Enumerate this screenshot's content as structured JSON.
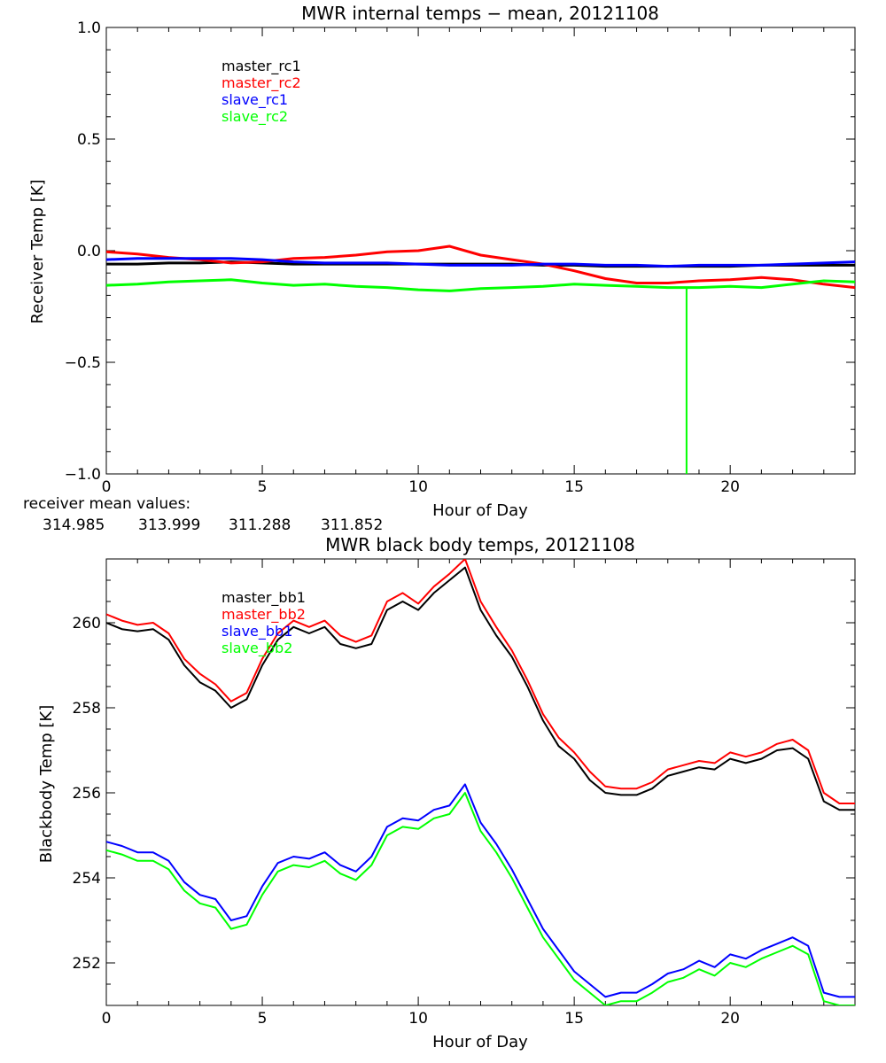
{
  "chart_data": [
    {
      "type": "line",
      "title": "MWR internal temps − mean, 20121108",
      "xlabel": "Hour of Day",
      "ylabel": "Receiver Temp [K]",
      "xlim": [
        0,
        24
      ],
      "ylim": [
        -1.0,
        1.0
      ],
      "xticks": [
        0,
        5,
        10,
        15,
        20
      ],
      "yticks": [
        -1.0,
        -0.5,
        0.0,
        0.5,
        1.0
      ],
      "ytick_labels": [
        "−1.0",
        "−0.5",
        "0.0",
        "0.5",
        "1.0"
      ],
      "legend_position": "top-left",
      "x": [
        0,
        1,
        2,
        3,
        4,
        5,
        6,
        7,
        8,
        9,
        10,
        11,
        12,
        13,
        14,
        15,
        16,
        17,
        18,
        19,
        20,
        21,
        22,
        23,
        24
      ],
      "series": [
        {
          "name": "master_rc1",
          "color": "#000000",
          "values": [
            -0.06,
            -0.06,
            -0.055,
            -0.055,
            -0.05,
            -0.055,
            -0.06,
            -0.06,
            -0.06,
            -0.06,
            -0.06,
            -0.06,
            -0.06,
            -0.06,
            -0.065,
            -0.065,
            -0.07,
            -0.07,
            -0.07,
            -0.07,
            -0.07,
            -0.065,
            -0.065,
            -0.065,
            -0.065
          ]
        },
        {
          "name": "master_rc2",
          "color": "#ff0000",
          "values": [
            -0.005,
            -0.015,
            -0.03,
            -0.04,
            -0.055,
            -0.05,
            -0.035,
            -0.03,
            -0.02,
            -0.005,
            0.0,
            0.02,
            -0.02,
            -0.04,
            -0.06,
            -0.09,
            -0.125,
            -0.145,
            -0.145,
            -0.135,
            -0.13,
            -0.12,
            -0.13,
            -0.15,
            -0.165
          ]
        },
        {
          "name": "slave_rc1",
          "color": "#0000ff",
          "values": [
            -0.04,
            -0.035,
            -0.035,
            -0.035,
            -0.035,
            -0.04,
            -0.05,
            -0.055,
            -0.055,
            -0.055,
            -0.06,
            -0.065,
            -0.065,
            -0.065,
            -0.06,
            -0.06,
            -0.065,
            -0.065,
            -0.07,
            -0.065,
            -0.065,
            -0.065,
            -0.06,
            -0.055,
            -0.05
          ]
        },
        {
          "name": "slave_rc2",
          "color": "#00ff00",
          "values": [
            -0.155,
            -0.15,
            -0.14,
            -0.135,
            -0.13,
            -0.145,
            -0.155,
            -0.15,
            -0.16,
            -0.165,
            -0.175,
            -0.18,
            -0.17,
            -0.165,
            -0.16,
            -0.15,
            -0.155,
            -0.16,
            -0.165,
            -0.165,
            -0.16,
            -0.165,
            -0.15,
            -0.135,
            -0.14
          ],
          "spike": {
            "x": 18.6,
            "to": -1.0
          }
        }
      ]
    },
    {
      "type": "line",
      "title": "MWR black body temps, 20121108",
      "xlabel": "Hour of Day",
      "ylabel": "Blackbody Temp [K]",
      "xlim": [
        0,
        24
      ],
      "ylim": [
        251.0,
        261.5
      ],
      "xticks": [
        0,
        5,
        10,
        15,
        20
      ],
      "yticks": [
        252,
        254,
        256,
        258,
        260
      ],
      "legend_position": "top-left",
      "x": [
        0,
        0.5,
        1,
        1.5,
        2,
        2.5,
        3,
        3.5,
        4,
        4.5,
        5,
        5.5,
        6,
        6.5,
        7,
        7.5,
        8,
        8.5,
        9,
        9.5,
        10,
        10.5,
        11,
        11.5,
        12,
        12.5,
        13,
        13.5,
        14,
        14.5,
        15,
        15.5,
        16,
        16.5,
        17,
        17.5,
        18,
        18.5,
        19,
        19.5,
        20,
        20.5,
        21,
        21.5,
        22,
        22.5,
        23,
        23.5,
        24
      ],
      "series": [
        {
          "name": "master_bb1",
          "color": "#000000",
          "values": [
            260.0,
            259.85,
            259.8,
            259.85,
            259.6,
            259.0,
            258.6,
            258.4,
            258.0,
            258.2,
            259.0,
            259.6,
            259.9,
            259.75,
            259.9,
            259.5,
            259.4,
            259.5,
            260.3,
            260.5,
            260.3,
            260.7,
            261.0,
            261.3,
            260.3,
            259.7,
            259.2,
            258.5,
            257.7,
            257.1,
            256.8,
            256.3,
            256.0,
            255.95,
            255.95,
            256.1,
            256.4,
            256.5,
            256.6,
            256.55,
            256.8,
            256.7,
            256.8,
            257.0,
            257.05,
            256.8,
            255.8,
            255.6,
            255.6
          ]
        },
        {
          "name": "master_bb2",
          "color": "#ff0000",
          "values": [
            260.2,
            260.05,
            259.95,
            260.0,
            259.75,
            259.15,
            258.8,
            258.55,
            258.15,
            258.35,
            259.15,
            259.75,
            260.05,
            259.9,
            260.05,
            259.7,
            259.55,
            259.7,
            260.5,
            260.7,
            260.45,
            260.85,
            261.15,
            261.5,
            260.5,
            259.9,
            259.35,
            258.65,
            257.85,
            257.3,
            256.95,
            256.5,
            256.15,
            256.1,
            256.1,
            256.25,
            256.55,
            256.65,
            256.75,
            256.7,
            256.95,
            256.85,
            256.95,
            257.15,
            257.25,
            257.0,
            256.0,
            255.75,
            255.75
          ]
        },
        {
          "name": "slave_bb1",
          "color": "#0000ff",
          "values": [
            254.85,
            254.75,
            254.6,
            254.6,
            254.4,
            253.9,
            253.6,
            253.5,
            253.0,
            253.1,
            253.8,
            254.35,
            254.5,
            254.45,
            254.6,
            254.3,
            254.15,
            254.5,
            255.2,
            255.4,
            255.35,
            255.6,
            255.7,
            256.2,
            255.3,
            254.8,
            254.2,
            253.5,
            252.8,
            252.3,
            251.8,
            251.5,
            251.2,
            251.3,
            251.3,
            251.5,
            251.75,
            251.85,
            252.05,
            251.9,
            252.2,
            252.1,
            252.3,
            252.45,
            252.6,
            252.4,
            251.3,
            251.2,
            251.2
          ]
        },
        {
          "name": "slave_bb2",
          "color": "#00ff00",
          "values": [
            254.65,
            254.55,
            254.4,
            254.4,
            254.2,
            253.7,
            253.4,
            253.3,
            252.8,
            252.9,
            253.6,
            254.15,
            254.3,
            254.25,
            254.4,
            254.1,
            253.95,
            254.3,
            255.0,
            255.2,
            255.15,
            255.4,
            255.5,
            256.0,
            255.1,
            254.6,
            254.0,
            253.3,
            252.6,
            252.1,
            251.6,
            251.3,
            251.0,
            251.1,
            251.1,
            251.3,
            251.55,
            251.65,
            251.85,
            251.7,
            252.0,
            251.9,
            252.1,
            252.25,
            252.4,
            252.2,
            251.1,
            251.0,
            251.0
          ]
        }
      ]
    }
  ],
  "receiver_means": {
    "label": "receiver mean values:",
    "values": [
      {
        "value": "314.985",
        "color": "#000000"
      },
      {
        "value": "313.999",
        "color": "#ff0000"
      },
      {
        "value": "311.288",
        "color": "#0000ff"
      },
      {
        "value": "311.852",
        "color": "#00ff00"
      }
    ]
  }
}
